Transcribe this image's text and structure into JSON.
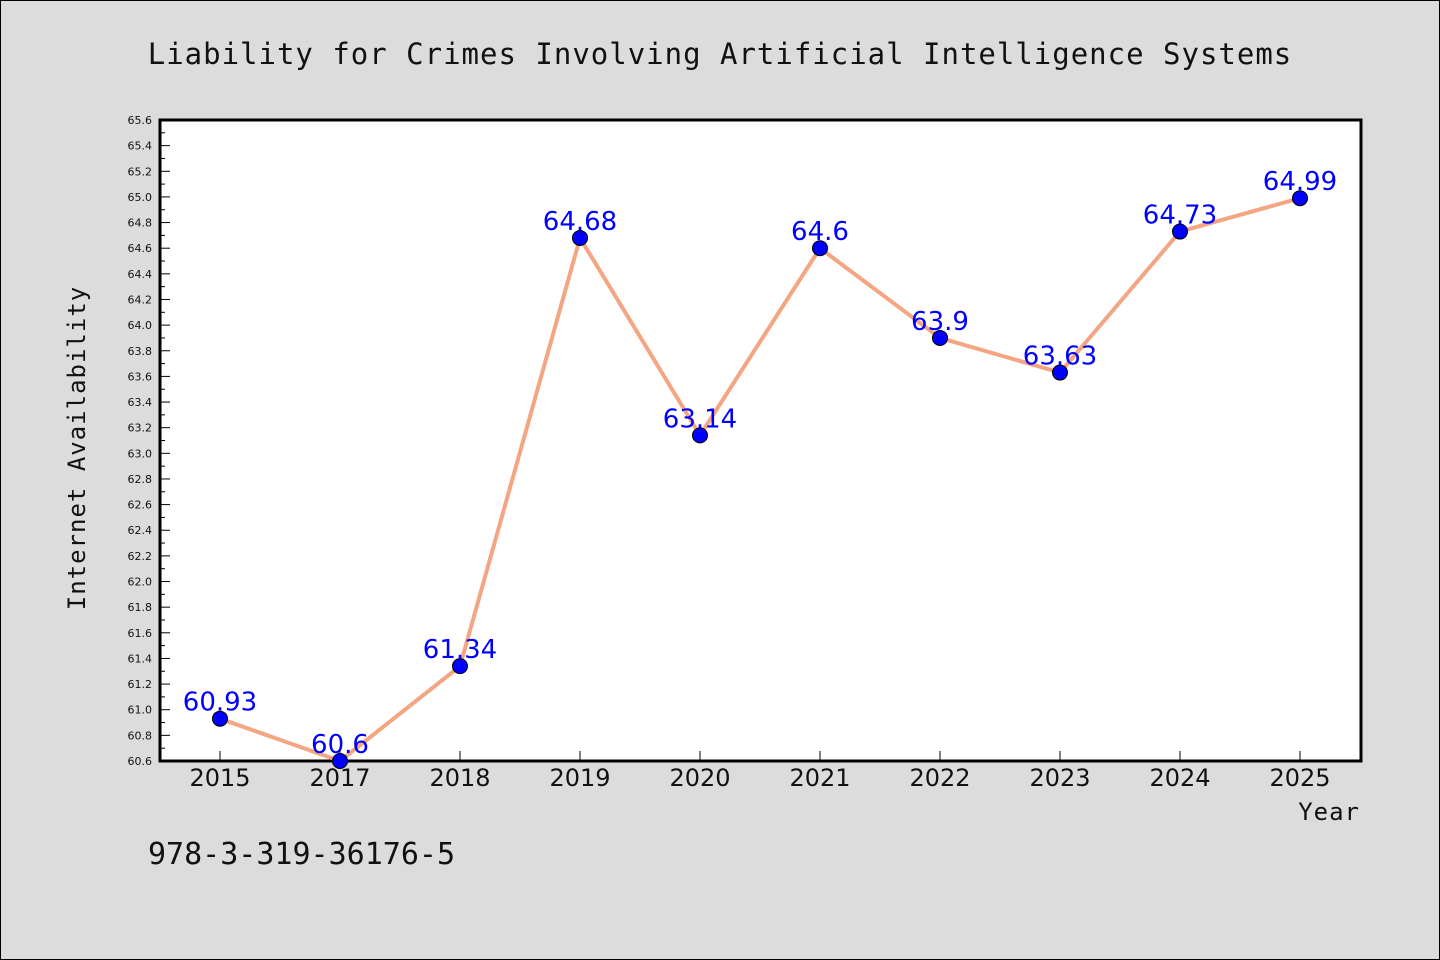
{
  "chart_data": {
    "type": "line",
    "title": "Liability for Crimes Involving Artificial Intelligence Systems",
    "xlabel": "Year",
    "ylabel": "Internet Availability",
    "categories": [
      "2015",
      "2017",
      "2018",
      "2019",
      "2020",
      "2021",
      "2022",
      "2023",
      "2024",
      "2025"
    ],
    "series": [
      {
        "values": [
          60.93,
          60.6,
          61.34,
          64.68,
          63.14,
          64.6,
          63.9,
          63.63,
          64.73,
          64.99
        ]
      }
    ],
    "data_labels": [
      "60.93",
      "60.6",
      "61.34",
      "64.68",
      "63.14",
      "64.6",
      "63.9",
      "63.63",
      "64.73",
      "64.99"
    ],
    "ylim": [
      60.6,
      65.6
    ],
    "ytick_step": 0.2,
    "grid": false,
    "line_color": "#f4a582",
    "marker_color": "#0000ff",
    "label_color": "#0000ff"
  },
  "footnote": "978-3-319-36176-5"
}
